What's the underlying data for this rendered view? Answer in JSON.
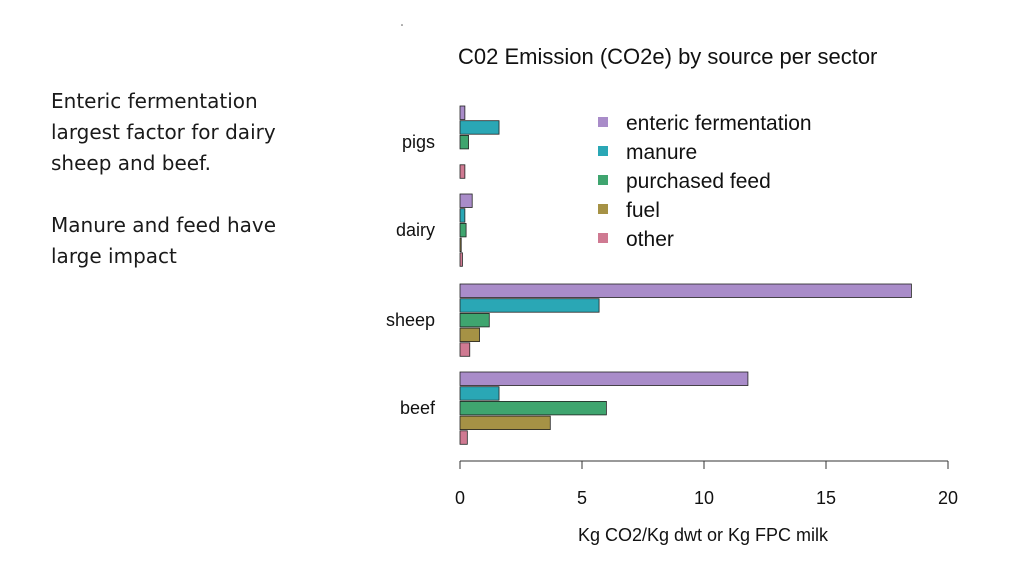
{
  "notes": [
    "Enteric fermentation\nlargest factor for dairy\nsheep and beef.",
    "Manure and feed have\nlarge impact"
  ],
  "chart_data": {
    "type": "bar",
    "orientation": "horizontal",
    "title": "C02 Emission (CO2e) by source per sector",
    "xlabel": "Kg CO2/Kg dwt or Kg FPC milk",
    "ylabel": "",
    "xlim": [
      0,
      20
    ],
    "xticks": [
      0,
      5,
      10,
      15,
      20
    ],
    "categories": [
      "pigs",
      "dairy",
      "sheep",
      "beef"
    ],
    "legend_position": "top-right",
    "series": [
      {
        "name": "enteric fermentation",
        "color": "#a98cc9",
        "values": [
          0.2,
          0.5,
          18.5,
          11.8
        ]
      },
      {
        "name": "manure",
        "color": "#2aa7b5",
        "values": [
          1.6,
          0.2,
          5.7,
          1.6
        ]
      },
      {
        "name": "purchased feed",
        "color": "#3fa56f",
        "values": [
          0.35,
          0.25,
          1.2,
          6.0
        ]
      },
      {
        "name": "fuel",
        "color": "#a69245",
        "values": [
          0.0,
          0.05,
          0.8,
          3.7
        ]
      },
      {
        "name": "other",
        "color": "#cf7a92",
        "values": [
          0.2,
          0.1,
          0.4,
          0.3
        ]
      }
    ]
  }
}
